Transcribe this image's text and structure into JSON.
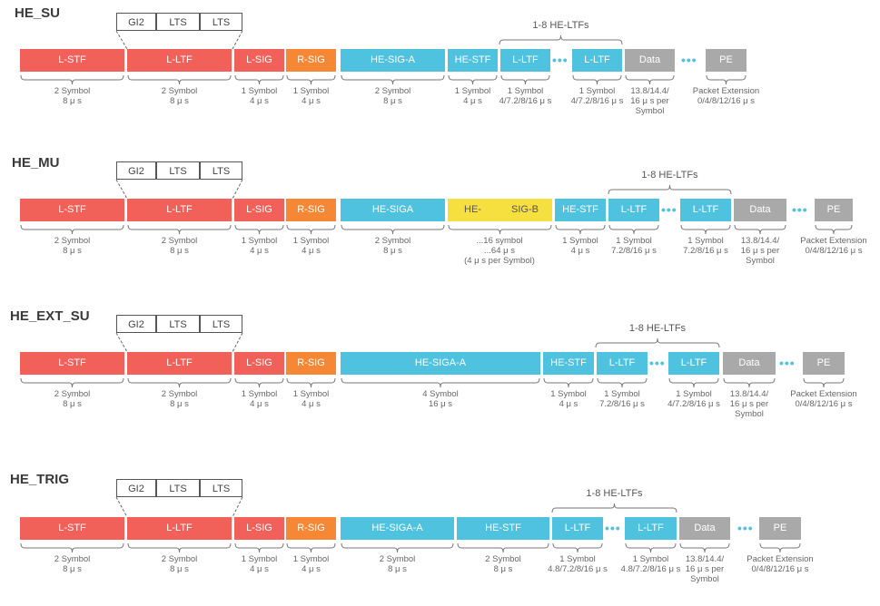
{
  "colors": {
    "red": "#f2605a",
    "orange": "#f58735",
    "cyan": "#4ec2df",
    "gray": "#a9a9a9",
    "yellow": "#f6e040"
  },
  "guard": {
    "gi2": "GI2",
    "lts": "LTS"
  },
  "ltf_caption": "1-8 HE-LTFs",
  "ellipsis": "•••",
  "su": {
    "title": "HE_SU",
    "fields": {
      "lstf": "L-STF",
      "lltf": "L-LTF",
      "lsig": "L-SIG",
      "rsig": "R-SIG",
      "sigA": "HE-SIG-A",
      "hestf": "HE-STF",
      "ltf1": "L-LTF",
      "ltf2": "L-LTF",
      "data": "Data",
      "pe": "PE"
    },
    "durations": {
      "lstf": [
        "2 Symbol",
        "8 μ s"
      ],
      "lltf": [
        "2 Symbol",
        "8 μ s"
      ],
      "lsig": [
        "1 Symbol",
        "4 μ s"
      ],
      "rsig": [
        "1 Symbol",
        "4 μ s"
      ],
      "sigA": [
        "2 Symbol",
        "8 μ s"
      ],
      "hestf": [
        "1 Symbol",
        "4 μ s"
      ],
      "ltf1": [
        "1 Symbol",
        "4/7.2/8/16 μ s"
      ],
      "ltf2": [
        "1 Symbol",
        "4/7.2/8/16 μ s"
      ],
      "data": [
        "13.8/14.4/",
        "16 μ s per",
        "Symbol"
      ],
      "pe": [
        "Packet Extension",
        "0/4/8/12/16 μ s"
      ]
    }
  },
  "mu": {
    "title": "HE_MU",
    "fields": {
      "lstf": "L-STF",
      "lltf": "L-LTF",
      "lsig": "L-SIG",
      "rsig": "R-SIG",
      "sigA": "HE-SIGA",
      "sigb1": "HE-",
      "sigb2": "SIG-B",
      "hestf": "HE-STF",
      "ltf1": "L-LTF",
      "ltf2": "L-LTF",
      "data": "Data",
      "pe": "PE"
    },
    "durations": {
      "lstf": [
        "2 Symbol",
        "8 μ s"
      ],
      "lltf": [
        "2 Symbol",
        "8 μ s"
      ],
      "lsig": [
        "1 Symbol",
        "4 μ s"
      ],
      "rsig": [
        "1 Symbol",
        "4 μ s"
      ],
      "sigA": [
        "2 Symbol",
        "8 μ s"
      ],
      "sigb": [
        "...16 symbol",
        "...64 μ s",
        "(4 μ s per Symbol)"
      ],
      "hestf": [
        "1 Symbol",
        "4 μ s"
      ],
      "ltf1": [
        "1 Symbol",
        "7.2/8/16 μ s"
      ],
      "ltf2": [
        "1 Symbol",
        "7.2/8/16 μ s"
      ],
      "data": [
        "13.8/14.4/",
        "16 μ s per",
        "Symbol"
      ],
      "pe": [
        "Packet Extension",
        "0/4/8/12/16 μ s"
      ]
    }
  },
  "ext": {
    "title": "HE_EXT_SU",
    "fields": {
      "lstf": "L-STF",
      "lltf": "L-LTF",
      "lsig": "L-SIG",
      "rsig": "R-SIG",
      "sigA": "HE-SIGA-A",
      "hestf": "HE-STF",
      "ltf1": "L-LTF",
      "ltf2": "L-LTF",
      "data": "Data",
      "pe": "PE"
    },
    "durations": {
      "lstf": [
        "2 Symbol",
        "8 μ s"
      ],
      "lltf": [
        "2 Symbol",
        "8 μ s"
      ],
      "lsig": [
        "1 Symbol",
        "4 μ s"
      ],
      "rsig": [
        "1 Symbol",
        "4 μ s"
      ],
      "sigA": [
        "4 Symbol",
        "16 μ s"
      ],
      "hestf": [
        "1 Symbol",
        "4 μ s"
      ],
      "ltf1": [
        "1 Symbol",
        "7.2/8/16 μ s"
      ],
      "ltf2": [
        "1 Symbol",
        "4/7.2/8/16 μ s"
      ],
      "data": [
        "13.8/14.4/",
        "16 μ s per",
        "Symbol"
      ],
      "pe": [
        "Packet Extension",
        "0/4/8/12/16 μ s"
      ]
    }
  },
  "trig": {
    "title": "HE_TRIG",
    "fields": {
      "lstf": "L-STF",
      "lltf": "L-LTF",
      "lsig": "L-SIG",
      "rsig": "R-SIG",
      "sigA": "HE-SIGA-A",
      "hestf": "HE-STF",
      "ltf1": "L-LTF",
      "ltf2": "L-LTF",
      "data": "Data",
      "pe": "PE"
    },
    "durations": {
      "lstf": [
        "2 Symbol",
        "8 μ s"
      ],
      "lltf": [
        "2 Symbol",
        "8 μ s"
      ],
      "lsig": [
        "1 Symbol",
        "4 μ s"
      ],
      "rsig": [
        "1 Symbol",
        "4 μ s"
      ],
      "sigA": [
        "2 Symbol",
        "8 μ s"
      ],
      "hestf": [
        "2 Symbol",
        "8 μ s"
      ],
      "ltf1": [
        "1 Symbol",
        "4.8/7.2/8/16 μ s"
      ],
      "ltf2": [
        "1 Symbol",
        "4.8/7.2/8/16 μ s"
      ],
      "data": [
        "13.8/14.4/",
        "16 μ s per",
        "Symbol"
      ],
      "pe": [
        "Packet Extension",
        "0/4/8/12/16 μ s"
      ]
    }
  }
}
